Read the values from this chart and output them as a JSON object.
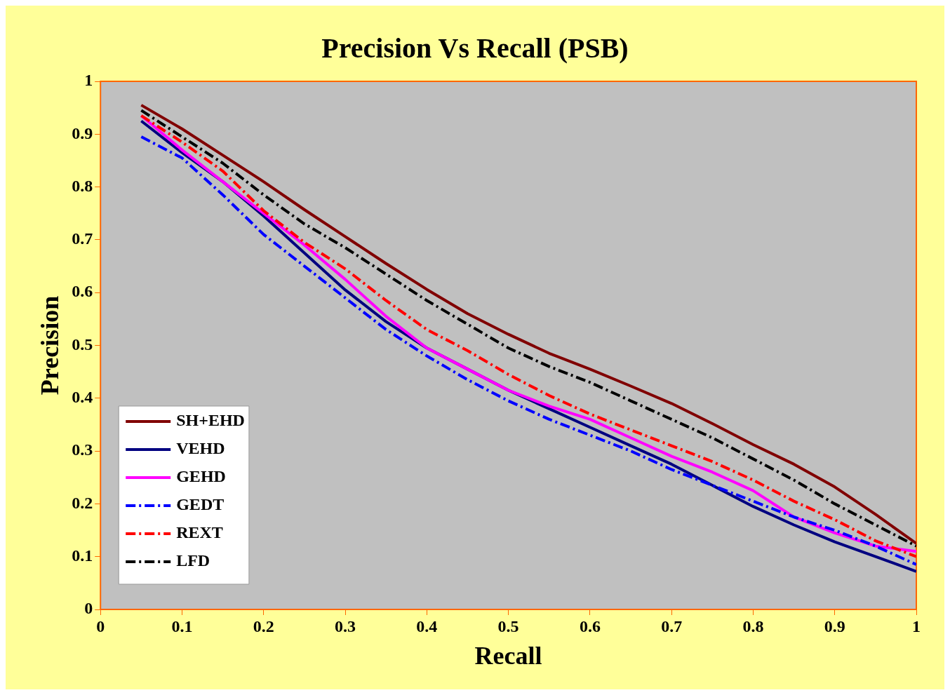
{
  "chart_data": {
    "type": "line",
    "title": "Precision Vs Recall (PSB)",
    "xlabel": "Recall",
    "ylabel": "Precision",
    "x": [
      0.05,
      0.1,
      0.15,
      0.2,
      0.25,
      0.3,
      0.35,
      0.4,
      0.45,
      0.5,
      0.55,
      0.6,
      0.65,
      0.7,
      0.75,
      0.8,
      0.85,
      0.9,
      0.95,
      1.0
    ],
    "xlim": [
      0,
      1
    ],
    "xticks": [
      0,
      0.1,
      0.2,
      0.3,
      0.4,
      0.5,
      0.6,
      0.7,
      0.8,
      0.9,
      1
    ],
    "ylim": [
      0,
      1
    ],
    "yticks": [
      0,
      0.1,
      0.2,
      0.3,
      0.4,
      0.5,
      0.6,
      0.7,
      0.8,
      0.9,
      1
    ],
    "grid": false,
    "legend": "bottom left",
    "marker": "none",
    "series": [
      {
        "name": "SH+EHD",
        "color": "#800000",
        "line_style": "solid",
        "values": [
          0.955,
          0.91,
          0.86,
          0.81,
          0.757,
          0.706,
          0.655,
          0.606,
          0.56,
          0.521,
          0.485,
          0.455,
          0.423,
          0.39,
          0.352,
          0.312,
          0.275,
          0.232,
          0.18,
          0.125
        ]
      },
      {
        "name": "VEHD",
        "color": "#000080",
        "line_style": "solid",
        "values": [
          0.925,
          0.865,
          0.81,
          0.745,
          0.675,
          0.605,
          0.545,
          0.495,
          0.455,
          0.415,
          0.38,
          0.345,
          0.31,
          0.275,
          0.235,
          0.195,
          0.16,
          0.128,
          0.1,
          0.072
        ]
      },
      {
        "name": "GEHD",
        "color": "#ff00ff",
        "line_style": "solid",
        "values": [
          0.935,
          0.87,
          0.81,
          0.75,
          0.69,
          0.625,
          0.555,
          0.495,
          0.455,
          0.415,
          0.385,
          0.36,
          0.325,
          0.29,
          0.26,
          0.225,
          0.175,
          0.145,
          0.12,
          0.11
        ]
      },
      {
        "name": "GEDT",
        "color": "#0000ff",
        "line_style": "dashed",
        "values": [
          0.895,
          0.855,
          0.785,
          0.71,
          0.65,
          0.59,
          0.53,
          0.48,
          0.435,
          0.395,
          0.36,
          0.33,
          0.3,
          0.265,
          0.235,
          0.205,
          0.175,
          0.15,
          0.12,
          0.085
        ]
      },
      {
        "name": "REXT",
        "color": "#ff0000",
        "line_style": "dashed",
        "values": [
          0.935,
          0.885,
          0.83,
          0.755,
          0.695,
          0.645,
          0.585,
          0.53,
          0.49,
          0.445,
          0.405,
          0.37,
          0.34,
          0.31,
          0.28,
          0.245,
          0.205,
          0.17,
          0.13,
          0.1
        ]
      },
      {
        "name": "LFD",
        "color": "#000000",
        "line_style": "dashed",
        "values": [
          0.945,
          0.895,
          0.845,
          0.785,
          0.73,
          0.685,
          0.635,
          0.585,
          0.54,
          0.495,
          0.46,
          0.43,
          0.395,
          0.36,
          0.325,
          0.285,
          0.245,
          0.2,
          0.16,
          0.12
        ]
      }
    ]
  }
}
